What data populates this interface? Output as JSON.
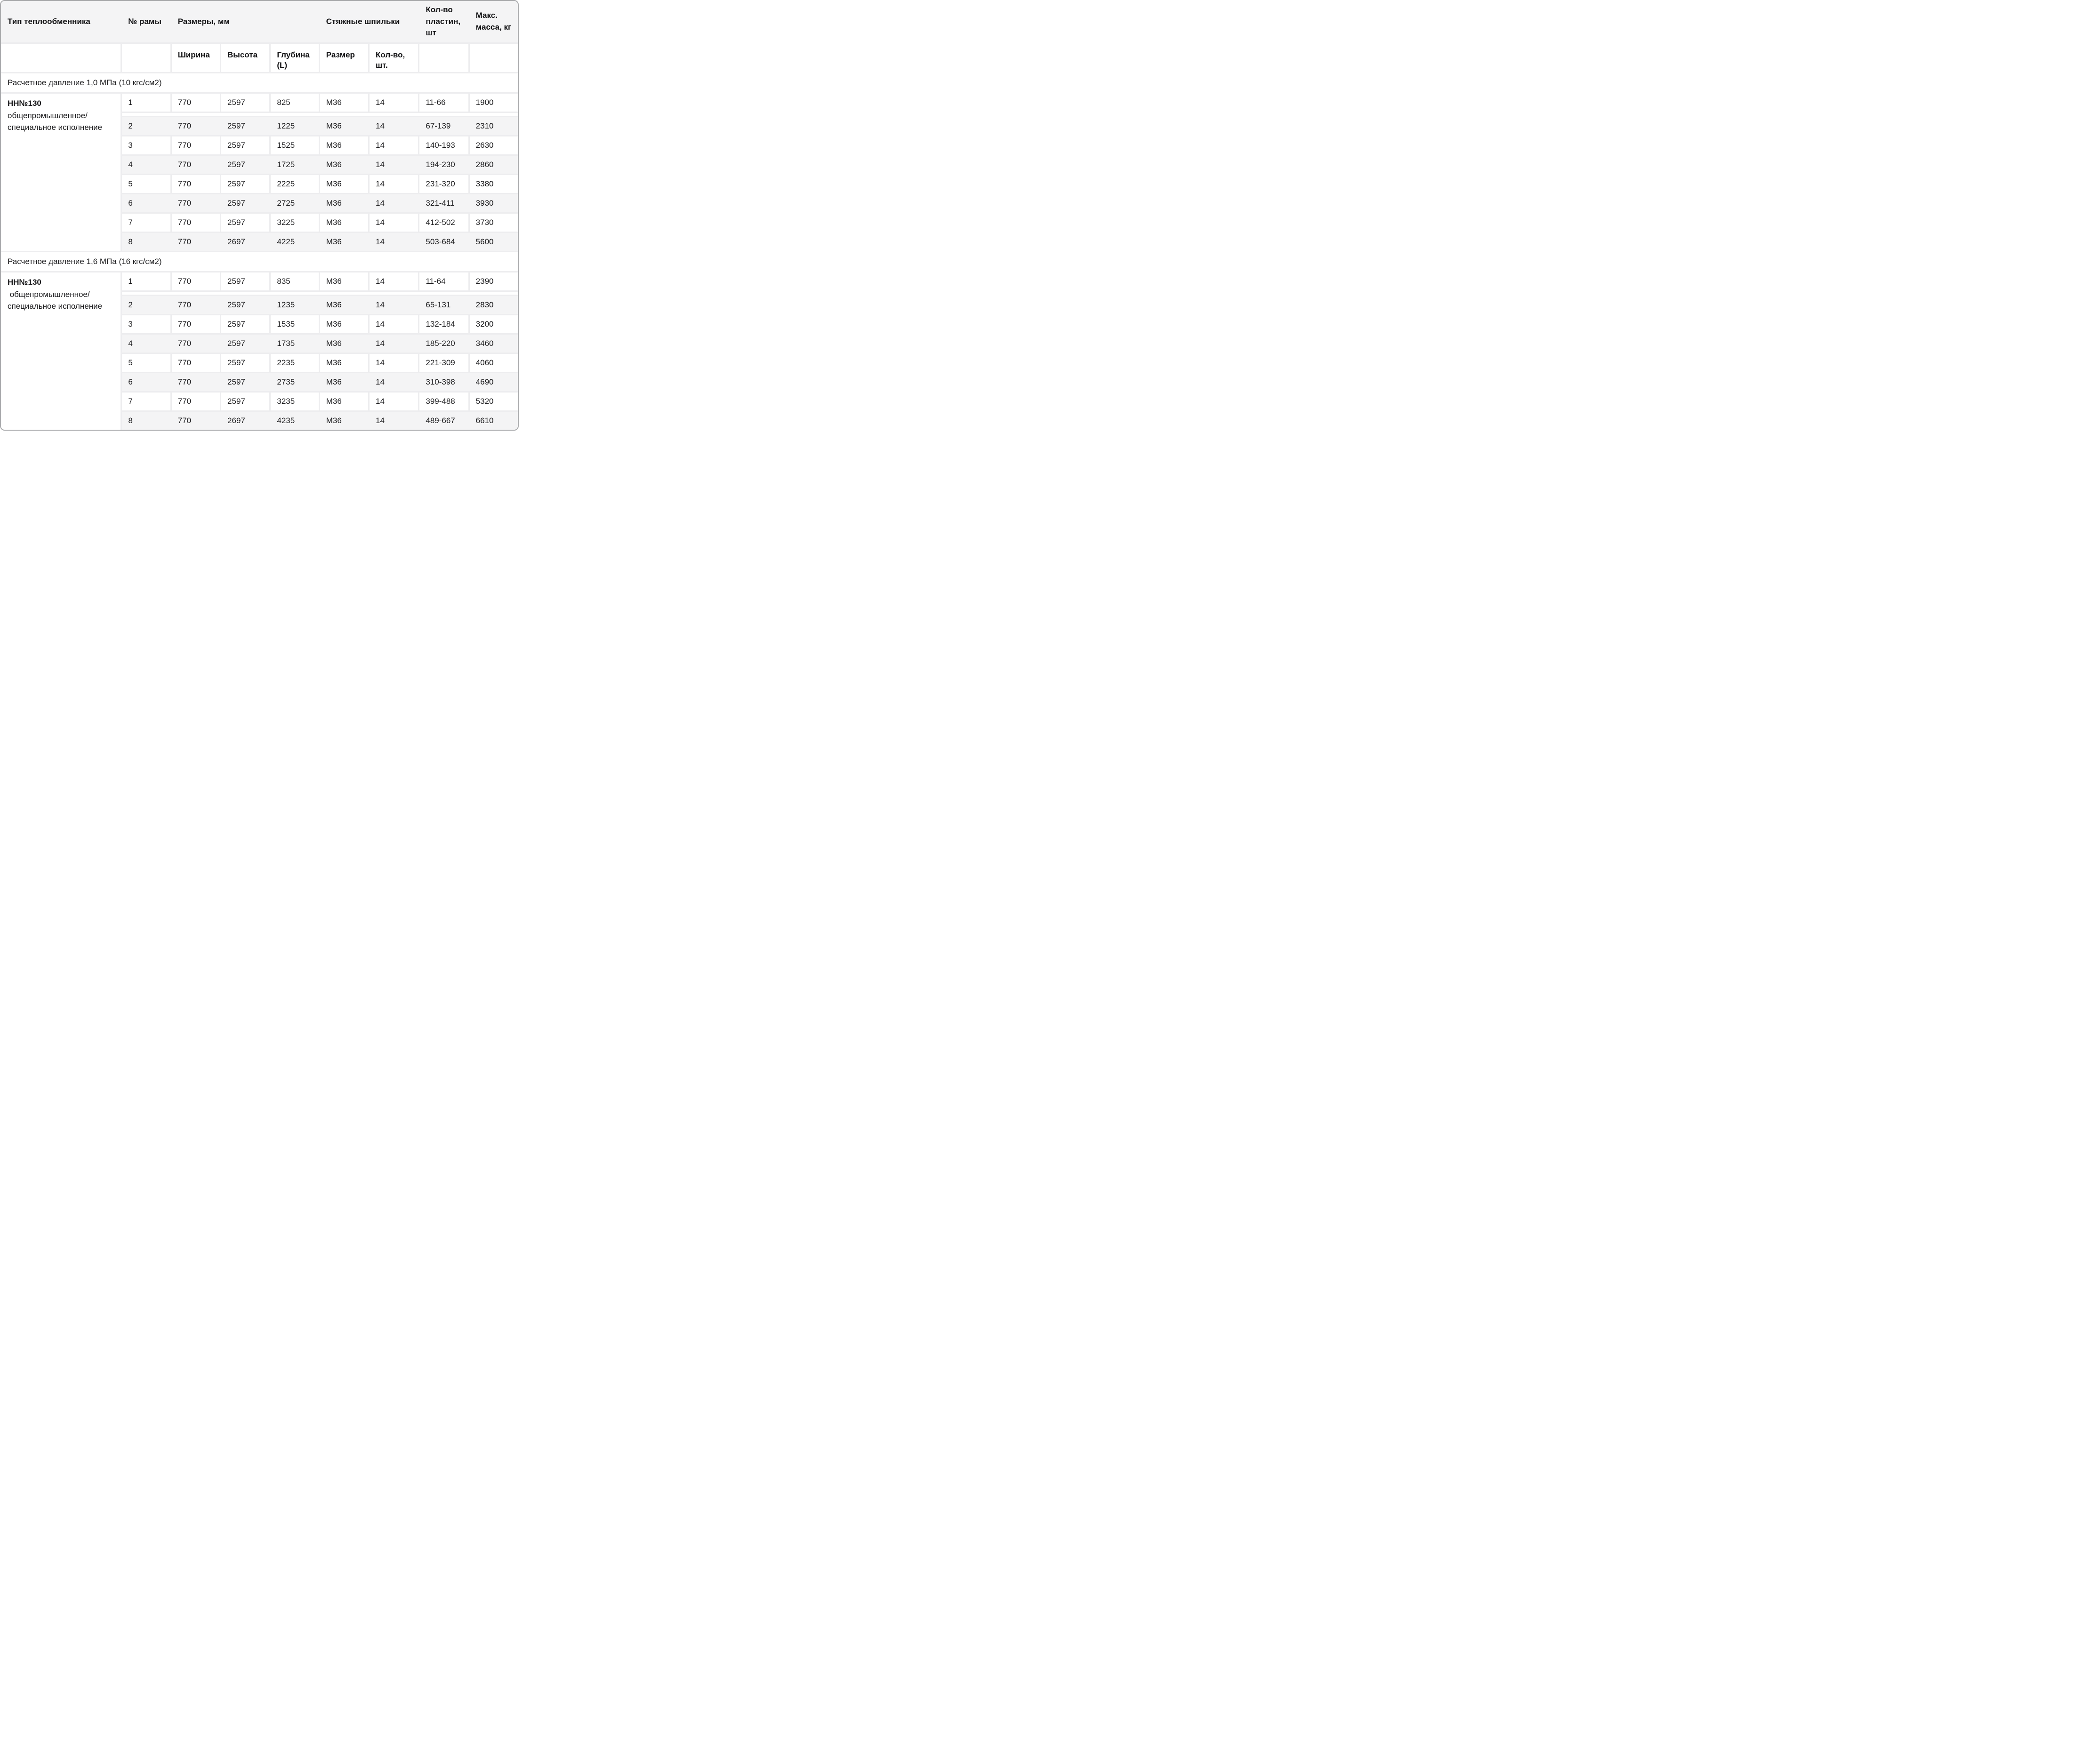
{
  "header": {
    "col_type": "Тип теплообменника",
    "col_frame": "№ рамы",
    "col_dims": "Размеры, мм",
    "col_studs": "Стяжные шпильки",
    "col_plates": "Кол-во пластин, шт",
    "col_mass": "Макс. масса, кг",
    "sub_width": "Ширина",
    "sub_height": "Высота",
    "sub_depth": "Глубина (L)",
    "sub_size": "Размер",
    "sub_qty": "Кол-во, шт."
  },
  "sections": [
    {
      "title": "Расчетное давление 1,0 МПа (10 кгс/см2)",
      "group_title": "НН№130",
      "group_subtitle": "общепромышленное/\nспециальное исполнение",
      "rows": [
        [
          "1",
          "770",
          "2597",
          "825",
          "М36",
          "14",
          "11-66",
          "1900"
        ],
        [
          "2",
          "770",
          "2597",
          "1225",
          "М36",
          "14",
          "67-139",
          "2310"
        ],
        [
          "3",
          "770",
          "2597",
          "1525",
          "М36",
          "14",
          "140-193",
          "2630"
        ],
        [
          "4",
          "770",
          "2597",
          "1725",
          "М36",
          "14",
          "194-230",
          "2860"
        ],
        [
          "5",
          "770",
          "2597",
          "2225",
          "М36",
          "14",
          "231-320",
          "3380"
        ],
        [
          "6",
          "770",
          "2597",
          "2725",
          "М36",
          "14",
          "321-411",
          "3930"
        ],
        [
          "7",
          "770",
          "2597",
          "3225",
          "М36",
          "14",
          "412-502",
          "3730"
        ],
        [
          "8",
          "770",
          "2697",
          "4225",
          "М36",
          "14",
          "503-684",
          "5600"
        ]
      ]
    },
    {
      "title": "Расчетное давление 1,6 МПа (16 кгс/см2)",
      "group_title": "НН№130",
      "group_subtitle": " общепромышленное/\nспециальное исполнение",
      "rows": [
        [
          "1",
          "770",
          "2597",
          "835",
          "М36",
          "14",
          "11-64",
          "2390"
        ],
        [
          "2",
          "770",
          "2597",
          "1235",
          "М36",
          "14",
          "65-131",
          "2830"
        ],
        [
          "3",
          "770",
          "2597",
          "1535",
          "М36",
          "14",
          "132-184",
          "3200"
        ],
        [
          "4",
          "770",
          "2597",
          "1735",
          "М36",
          "14",
          "185-220",
          "3460"
        ],
        [
          "5",
          "770",
          "2597",
          "2235",
          "М36",
          "14",
          "221-309",
          "4060"
        ],
        [
          "6",
          "770",
          "2597",
          "2735",
          "М36",
          "14",
          "310-398",
          "4690"
        ],
        [
          "7",
          "770",
          "2597",
          "3235",
          "М36",
          "14",
          "399-488",
          "5320"
        ],
        [
          "8",
          "770",
          "2697",
          "4235",
          "М36",
          "14",
          "489-667",
          "6610"
        ]
      ]
    }
  ],
  "colors": {
    "header_bg": "#f4f4f5",
    "row_alt_bg": "#f4f4f5",
    "grid_line": "#ededef",
    "card_border": "#aaabad",
    "text": "#1a1a1c"
  }
}
